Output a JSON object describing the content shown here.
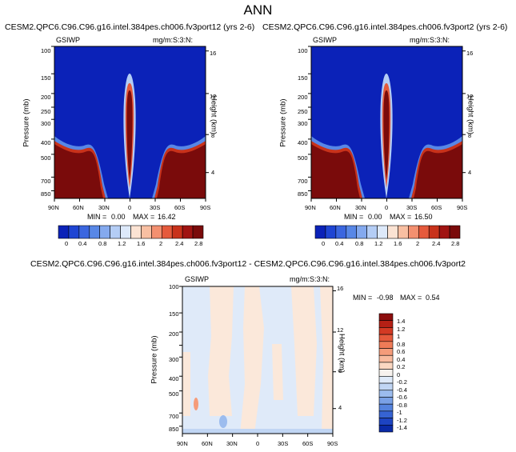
{
  "page": {
    "title": "ANN"
  },
  "chart_data": [
    {
      "type": "heatmap",
      "title": "CESM2.QPC6.C96.C96.g16.intel.384pes.ch006.fv3port12 (yrs 2-6)",
      "left_label": "GSIWP",
      "right_label": "mg/m:S:3:N:",
      "xlabel": "",
      "ylabel": "Pressure (mb)",
      "y2label": "Height (km)",
      "x_ticks": [
        "90N",
        "60N",
        "30N",
        "0",
        "30S",
        "60S",
        "90S"
      ],
      "y_ticks": [
        "100",
        "150",
        "200",
        "250",
        "300",
        "400",
        "500",
        "700",
        "850"
      ],
      "y2_ticks": [
        "16",
        "12",
        "8",
        "4"
      ],
      "min_label": "MIN =",
      "min_value": "0.00",
      "max_label": "MAX =",
      "max_value": "16.42",
      "colorbar_labels": [
        "0",
        "0.4",
        "0.8",
        "1.2",
        "1.6",
        "2",
        "2.4",
        "2.8"
      ],
      "colorbar_colors": [
        "#0b22b8",
        "#1f45d3",
        "#3b66df",
        "#5887e6",
        "#84a9ee",
        "#b4cdf5",
        "#dde9fa",
        "#fbe3d3",
        "#f8bfa2",
        "#f39070",
        "#e55a3c",
        "#c8321b",
        "#a01412",
        "#7a0b0b"
      ]
    },
    {
      "type": "heatmap",
      "title": "CESM2.QPC6.C96.C96.g16.intel.384pes.ch006.fv3port2 (yrs 2-6)",
      "left_label": "GSIWP",
      "right_label": "mg/m:S:3:N:",
      "xlabel": "",
      "ylabel": "Pressure (mb)",
      "y2label": "Height (km)",
      "x_ticks": [
        "90N",
        "60N",
        "30N",
        "0",
        "30S",
        "60S",
        "90S"
      ],
      "y_ticks": [
        "100",
        "150",
        "200",
        "250",
        "300",
        "400",
        "500",
        "700",
        "850"
      ],
      "y2_ticks": [
        "16",
        "12",
        "8",
        "4"
      ],
      "min_label": "MIN =",
      "min_value": "0.00",
      "max_label": "MAX =",
      "max_value": "16.50",
      "colorbar_labels": [
        "0",
        "0.4",
        "0.8",
        "1.2",
        "1.6",
        "2",
        "2.4",
        "2.8"
      ],
      "colorbar_colors": [
        "#0b22b8",
        "#1f45d3",
        "#3b66df",
        "#5887e6",
        "#84a9ee",
        "#b4cdf5",
        "#dde9fa",
        "#fbe3d3",
        "#f8bfa2",
        "#f39070",
        "#e55a3c",
        "#c8321b",
        "#a01412",
        "#7a0b0b"
      ]
    },
    {
      "type": "heatmap",
      "title": "CESM2.QPC6.C96.C96.g16.intel.384pes.ch006.fv3port12 - CESM2.QPC6.C96.C96.g16.intel.384pes.ch006.fv3port2",
      "left_label": "GSIWP",
      "right_label": "mg/m:S:3:N:",
      "xlabel": "",
      "ylabel": "Pressure (mb)",
      "y2label": "Height (km)",
      "x_ticks": [
        "90N",
        "60N",
        "30N",
        "0",
        "30S",
        "60S",
        "90S"
      ],
      "y_ticks": [
        "100",
        "150",
        "200",
        "250",
        "300",
        "400",
        "500",
        "700",
        "850"
      ],
      "y2_ticks": [
        "16",
        "12",
        "8",
        "4"
      ],
      "min_label": "MIN =",
      "min_value": "-0.98",
      "max_label": "MAX =",
      "max_value": "0.54",
      "colorbar_labels": [
        "1.4",
        "1.2",
        "1",
        "0.8",
        "0.6",
        "0.4",
        "0.2",
        "0",
        "-0.2",
        "-0.4",
        "-0.6",
        "-0.8",
        "-1",
        "-1.2",
        "-1.4"
      ],
      "colorbar_colors": [
        "#8c0d0d",
        "#b52015",
        "#d33a24",
        "#e55a3c",
        "#ef7b57",
        "#f59c7a",
        "#f9bb9e",
        "#fbd8c2",
        "#f7f2ee",
        "#dfeaf9",
        "#c1d6f4",
        "#9cbcee",
        "#7aa1e6",
        "#5583de",
        "#3663d3",
        "#1d44c2",
        "#0a2aa6"
      ]
    }
  ]
}
